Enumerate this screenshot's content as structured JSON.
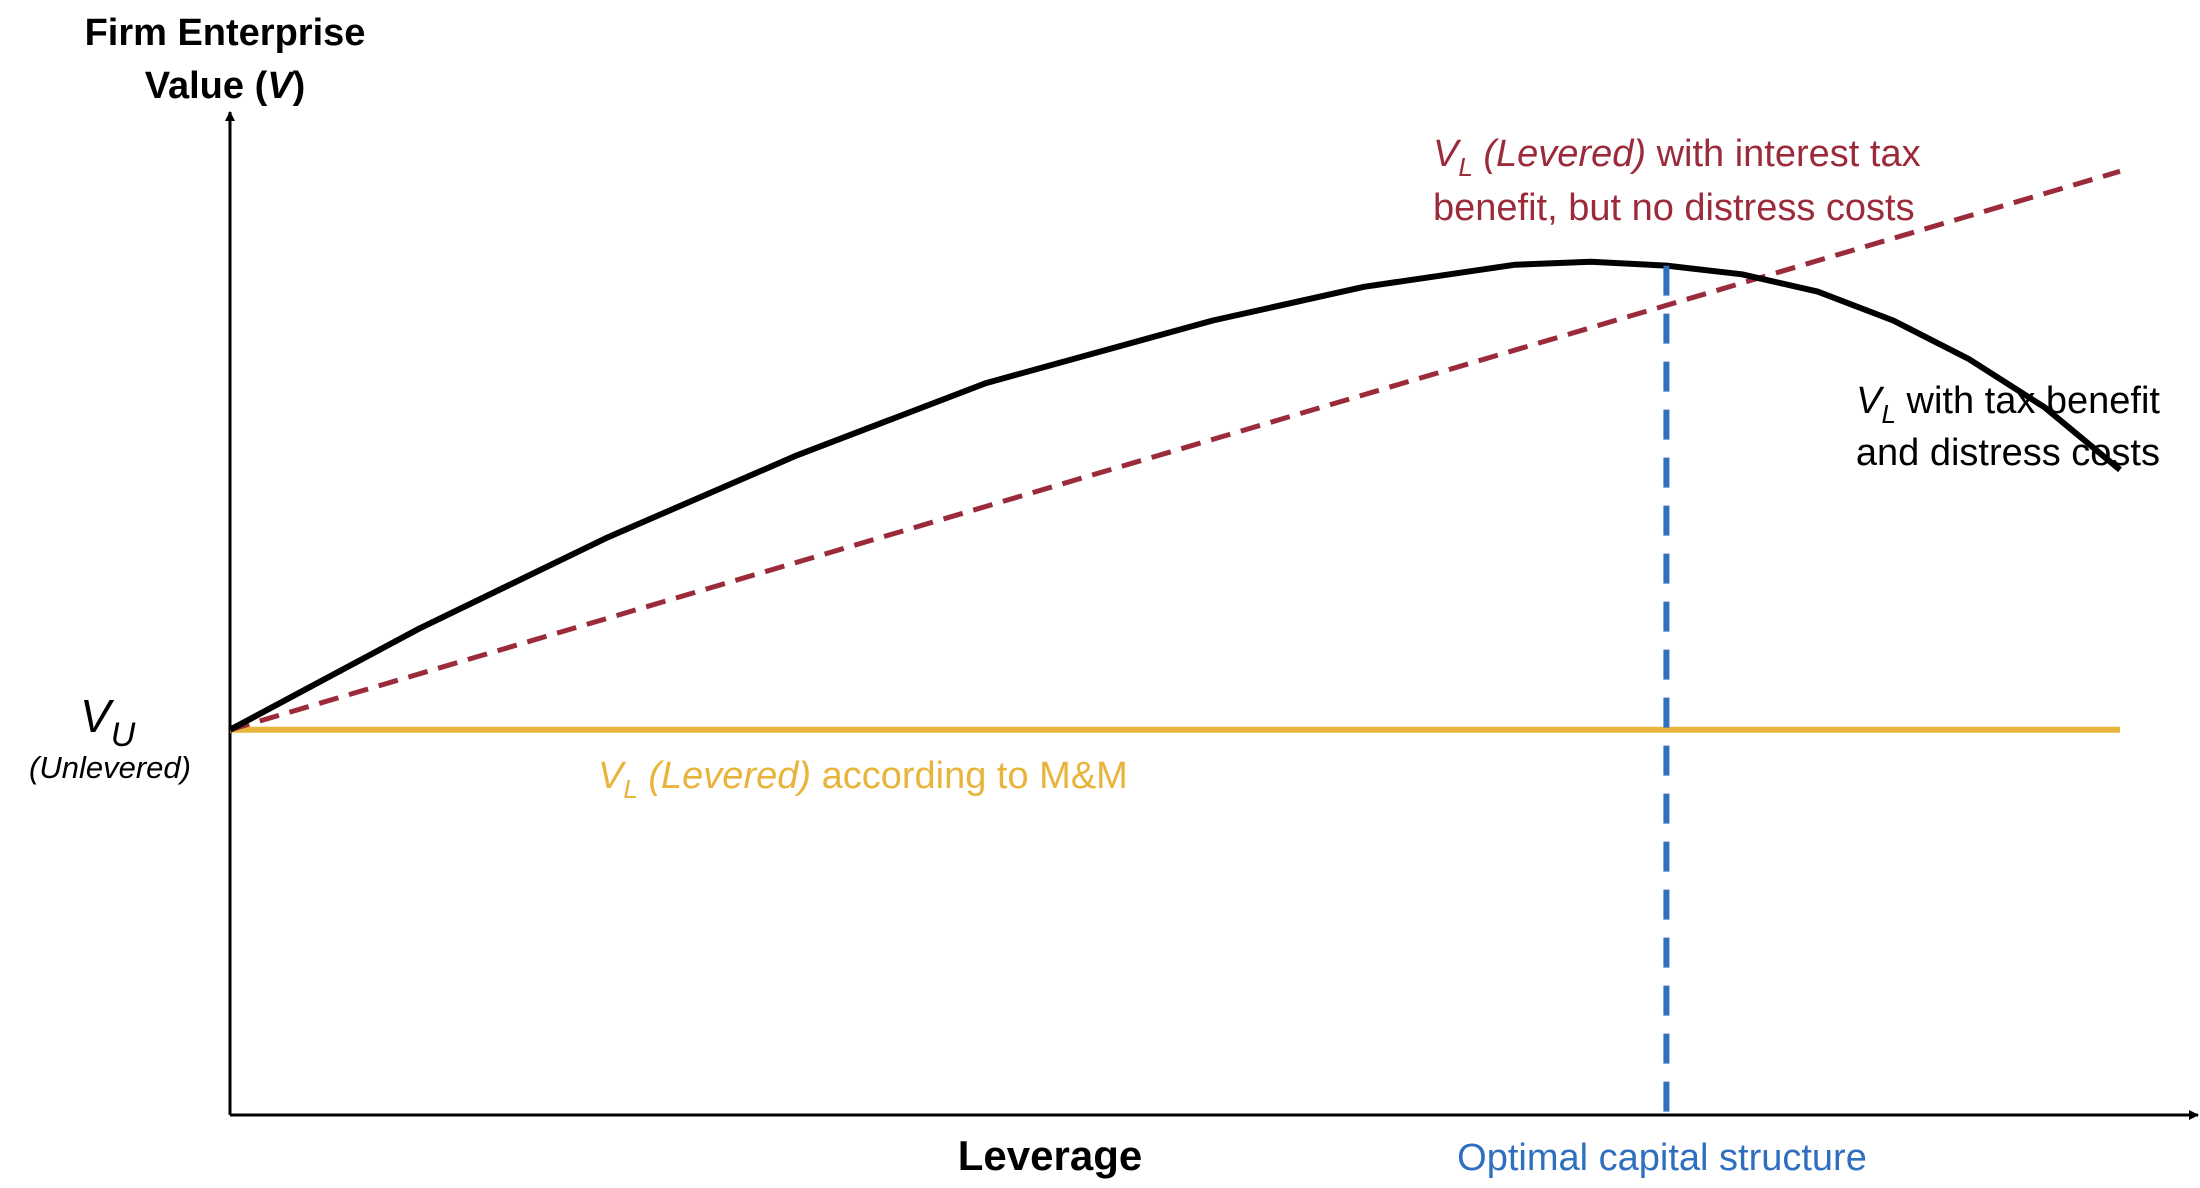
{
  "colors": {
    "tax_no_distress": "#9b2b3a",
    "tax_and_distress": "#000000",
    "mm": "#e8b43c",
    "optimal": "#2e6fc0",
    "axis": "#000000"
  },
  "labels": {
    "y_title_line1": "Firm Enterprise",
    "y_title_line2_text": "Value (",
    "y_title_line2_var": "V",
    "y_title_line2_close": ")",
    "vu_symbol": "V",
    "vu_subscript": "U",
    "vu_caption": "(Unlevered)",
    "x_title": "Leverage",
    "optimal": "Optimal capital structure",
    "red_v": "V",
    "red_sub": "L",
    "red_italic": " (Levered)",
    "red_rest": " with interest tax",
    "red_line2": "benefit, but no distress costs",
    "blk_v": "V",
    "blk_sub": "L",
    "blk_rest": " with tax benefit",
    "blk_line2": "and distress costs",
    "mm_v": "V",
    "mm_sub": "L",
    "mm_italic": " (Levered)",
    "mm_rest": " according to M&M"
  },
  "chart_data": {
    "type": "line",
    "xlabel": "Leverage",
    "ylabel": "Firm Enterprise Value (V)",
    "grid": false,
    "xlim": [
      0,
      100
    ],
    "ylim": [
      0,
      100
    ],
    "series": [
      {
        "name": "VL (Levered) with interest tax benefit, but no distress costs",
        "style": "dashed",
        "color": "#9b2b3a",
        "x": [
          0,
          100
        ],
        "y": [
          40,
          98
        ]
      },
      {
        "name": "VL with tax benefit and distress costs",
        "style": "solid",
        "color": "#000000",
        "x": [
          0,
          10,
          20,
          30,
          40,
          52,
          60,
          68,
          72,
          76,
          80,
          84,
          88,
          92,
          96,
          100
        ],
        "y": [
          40,
          50.5,
          60,
          68.5,
          76,
          82.5,
          86,
          88.3,
          88.6,
          88.2,
          87.3,
          85.5,
          82.5,
          78.5,
          73.5,
          67
        ]
      },
      {
        "name": "VL (Levered) according to M&M",
        "style": "solid",
        "color": "#e8b43c",
        "x": [
          0,
          100
        ],
        "y": [
          40,
          40
        ]
      }
    ],
    "reference_lines": [
      {
        "name": "Optimal capital structure",
        "axis": "x",
        "value": 76,
        "style": "dashed",
        "color": "#2e6fc0"
      }
    ],
    "y_marker": {
      "label": "VU (Unlevered)",
      "value": 40
    }
  }
}
